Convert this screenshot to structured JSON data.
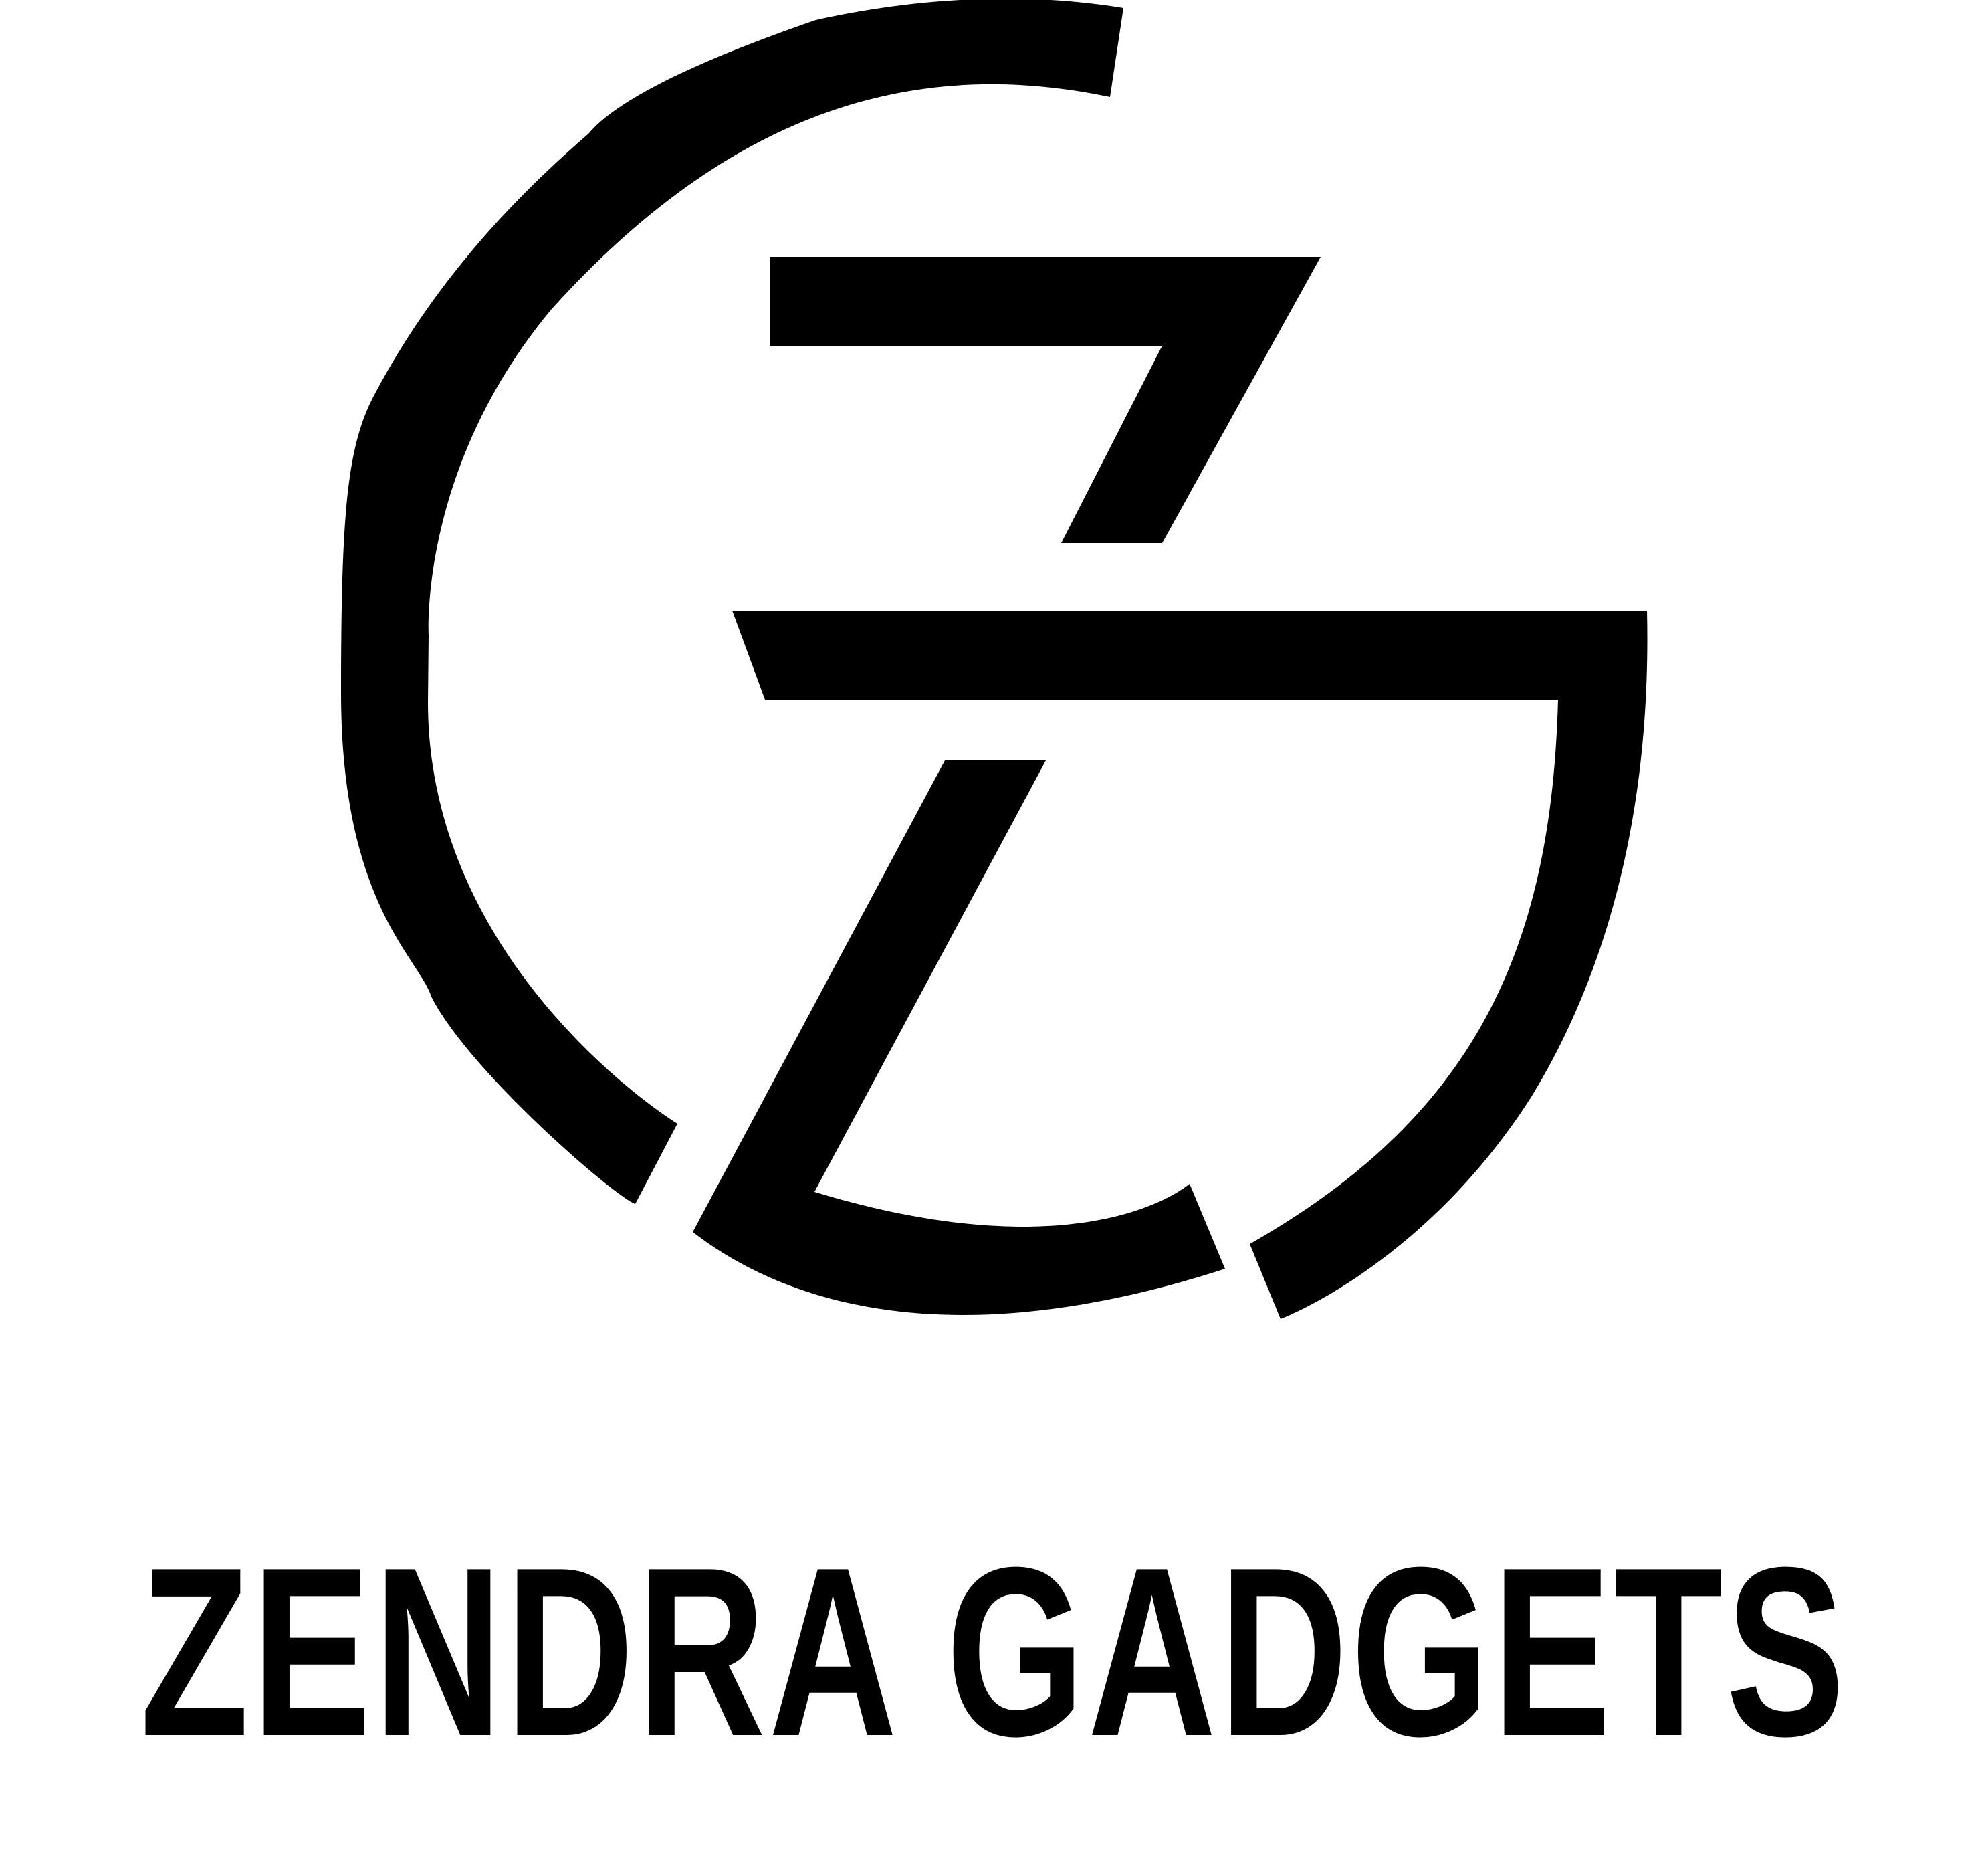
{
  "brand": {
    "name": "ZENDRA GADGETS",
    "color": "#000000",
    "background": "#ffffff"
  },
  "logo": {
    "icon": "gz-monogram-icon"
  }
}
